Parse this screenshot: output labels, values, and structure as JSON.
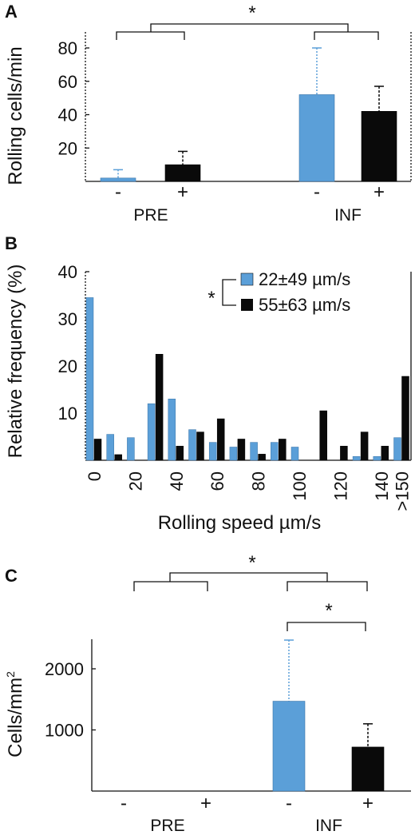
{
  "colors": {
    "blue": "#5b9fd8",
    "black": "#0a0a0a",
    "axis": "#111111"
  },
  "chart_data": [
    {
      "panel": "A",
      "type": "bar",
      "ylabel": "Rolling cells/min",
      "yticks": [
        20,
        40,
        60,
        80
      ],
      "ylim": [
        0,
        90
      ],
      "groups": [
        "PRE",
        "INF"
      ],
      "treatments": [
        "-",
        "+"
      ],
      "bars": [
        {
          "group": "PRE",
          "treatment": "-",
          "value": 2,
          "error": 5,
          "color": "blue"
        },
        {
          "group": "PRE",
          "treatment": "+",
          "value": 10,
          "error": 8,
          "color": "black"
        },
        {
          "group": "INF",
          "treatment": "-",
          "value": 52,
          "error": 28,
          "color": "blue"
        },
        {
          "group": "INF",
          "treatment": "+",
          "value": 42,
          "error": 15,
          "color": "black"
        }
      ],
      "significance": [
        {
          "between": [
            "PRE",
            "INF"
          ],
          "label": "*"
        }
      ]
    },
    {
      "panel": "B",
      "type": "bar",
      "xlabel": "Rolling speed µm/s",
      "ylabel": "Relative frequency (%)",
      "yticks": [
        10,
        20,
        30,
        40
      ],
      "ylim": [
        0,
        40
      ],
      "xticks": [
        "0",
        "20",
        "40",
        "60",
        "80",
        "100",
        "120",
        "140",
        ">150"
      ],
      "bins": [
        0,
        10,
        20,
        30,
        40,
        50,
        60,
        70,
        80,
        90,
        100,
        110,
        120,
        130,
        140,
        150
      ],
      "series": [
        {
          "name": "22±49 µm/s",
          "color": "blue",
          "values": [
            34.5,
            5.5,
            4.8,
            12.0,
            13.0,
            6.5,
            3.8,
            2.8,
            3.8,
            3.8,
            2.8,
            0,
            0,
            0.8,
            0.8,
            4.8
          ]
        },
        {
          "name": "55±63 µm/s",
          "color": "black",
          "values": [
            4.5,
            1.2,
            0,
            22.5,
            3.0,
            6.0,
            8.8,
            4.5,
            1.3,
            4.5,
            0,
            10.5,
            3.0,
            6.0,
            3.0,
            17.8
          ]
        }
      ],
      "legend_position": "top-right",
      "significance": [
        {
          "between": [
            "22±49 µm/s",
            "55±63 µm/s"
          ],
          "label": "*"
        }
      ]
    },
    {
      "panel": "C",
      "type": "bar",
      "ylabel": "Cells/mm²",
      "ylabel_main": "Cells/mm",
      "ylabel_sup": "2",
      "yticks": [
        1000,
        2000
      ],
      "ylim": [
        0,
        2500
      ],
      "groups": [
        "PRE",
        "INF"
      ],
      "treatments": [
        "-",
        "+"
      ],
      "bars": [
        {
          "group": "PRE",
          "treatment": "-",
          "value": 0,
          "error": 0,
          "color": "blue"
        },
        {
          "group": "PRE",
          "treatment": "+",
          "value": 0,
          "error": 0,
          "color": "black"
        },
        {
          "group": "INF",
          "treatment": "-",
          "value": 1470,
          "error": 1000,
          "color": "blue"
        },
        {
          "group": "INF",
          "treatment": "+",
          "value": 720,
          "error": 380,
          "color": "black"
        }
      ],
      "significance": [
        {
          "between": [
            "PRE",
            "INF"
          ],
          "label": "*"
        },
        {
          "between": [
            "INF -",
            "INF +"
          ],
          "label": "*"
        }
      ]
    }
  ]
}
